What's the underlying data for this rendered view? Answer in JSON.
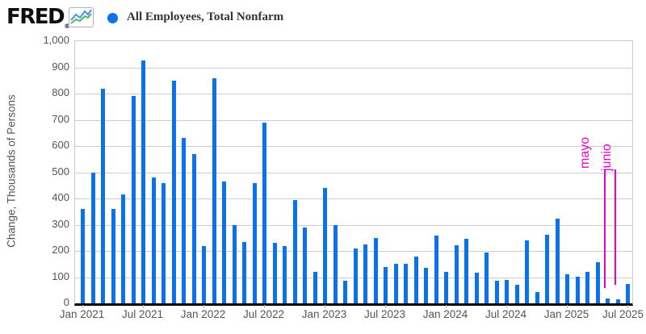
{
  "header": {
    "logo_text": "FRED",
    "registered_mark": "®",
    "legend_label": "All Employees, Total Nonfarm"
  },
  "chart_data": {
    "type": "bar",
    "title": "All Employees, Total Nonfarm",
    "ylabel": "Change, Thousands of Persons",
    "ylim": [
      0,
      1000
    ],
    "ytick_step": 100,
    "ytick_labels": [
      "0",
      "100",
      "200",
      "300",
      "400",
      "500",
      "600",
      "700",
      "800",
      "900",
      "1,000"
    ],
    "grid": true,
    "legend_position": "top",
    "bar_color": "#0a73e9",
    "categories": [
      "Jan 2021",
      "Feb 2021",
      "Mar 2021",
      "Apr 2021",
      "May 2021",
      "Jun 2021",
      "Jul 2021",
      "Aug 2021",
      "Sep 2021",
      "Oct 2021",
      "Nov 2021",
      "Dec 2021",
      "Jan 2022",
      "Feb 2022",
      "Mar 2022",
      "Apr 2022",
      "May 2022",
      "Jun 2022",
      "Jul 2022",
      "Aug 2022",
      "Sep 2022",
      "Oct 2022",
      "Nov 2022",
      "Dec 2022",
      "Jan 2023",
      "Feb 2023",
      "Mar 2023",
      "Apr 2023",
      "May 2023",
      "Jun 2023",
      "Jul 2023",
      "Aug 2023",
      "Sep 2023",
      "Oct 2023",
      "Nov 2023",
      "Dec 2023",
      "Jan 2024",
      "Feb 2024",
      "Mar 2024",
      "Apr 2024",
      "May 2024",
      "Jun 2024",
      "Jul 2024",
      "Aug 2024",
      "Sep 2024",
      "Oct 2024",
      "Nov 2024",
      "Dec 2024",
      "Jan 2025",
      "Feb 2025",
      "Mar 2025",
      "Apr 2025",
      "May 2025",
      "Jun 2025",
      "Jul 2025"
    ],
    "values": [
      360,
      500,
      820,
      360,
      415,
      790,
      925,
      480,
      460,
      850,
      630,
      570,
      220,
      860,
      465,
      300,
      235,
      460,
      690,
      230,
      220,
      395,
      290,
      120,
      440,
      300,
      85,
      210,
      225,
      250,
      140,
      150,
      150,
      180,
      135,
      260,
      119,
      222,
      246,
      118,
      193,
      87,
      88,
      71,
      240,
      44,
      261,
      323,
      111,
      102,
      120,
      158,
      19,
      14,
      73
    ],
    "xtick_every": 6,
    "xtick_labels": [
      "Jan 2021",
      "Jul 2021",
      "Jan 2022",
      "Jul 2022",
      "Jan 2023",
      "Jul 2023",
      "Jan 2024",
      "Jul 2024",
      "Jan 2025",
      "Jul 2025"
    ],
    "annotations": [
      {
        "label": "mayo",
        "target_month": "May 2025",
        "target_index": 52,
        "color": "#ee00cc"
      },
      {
        "label": "junio",
        "target_month": "Jun 2025",
        "target_index": 53,
        "color": "#ee00cc"
      }
    ]
  }
}
